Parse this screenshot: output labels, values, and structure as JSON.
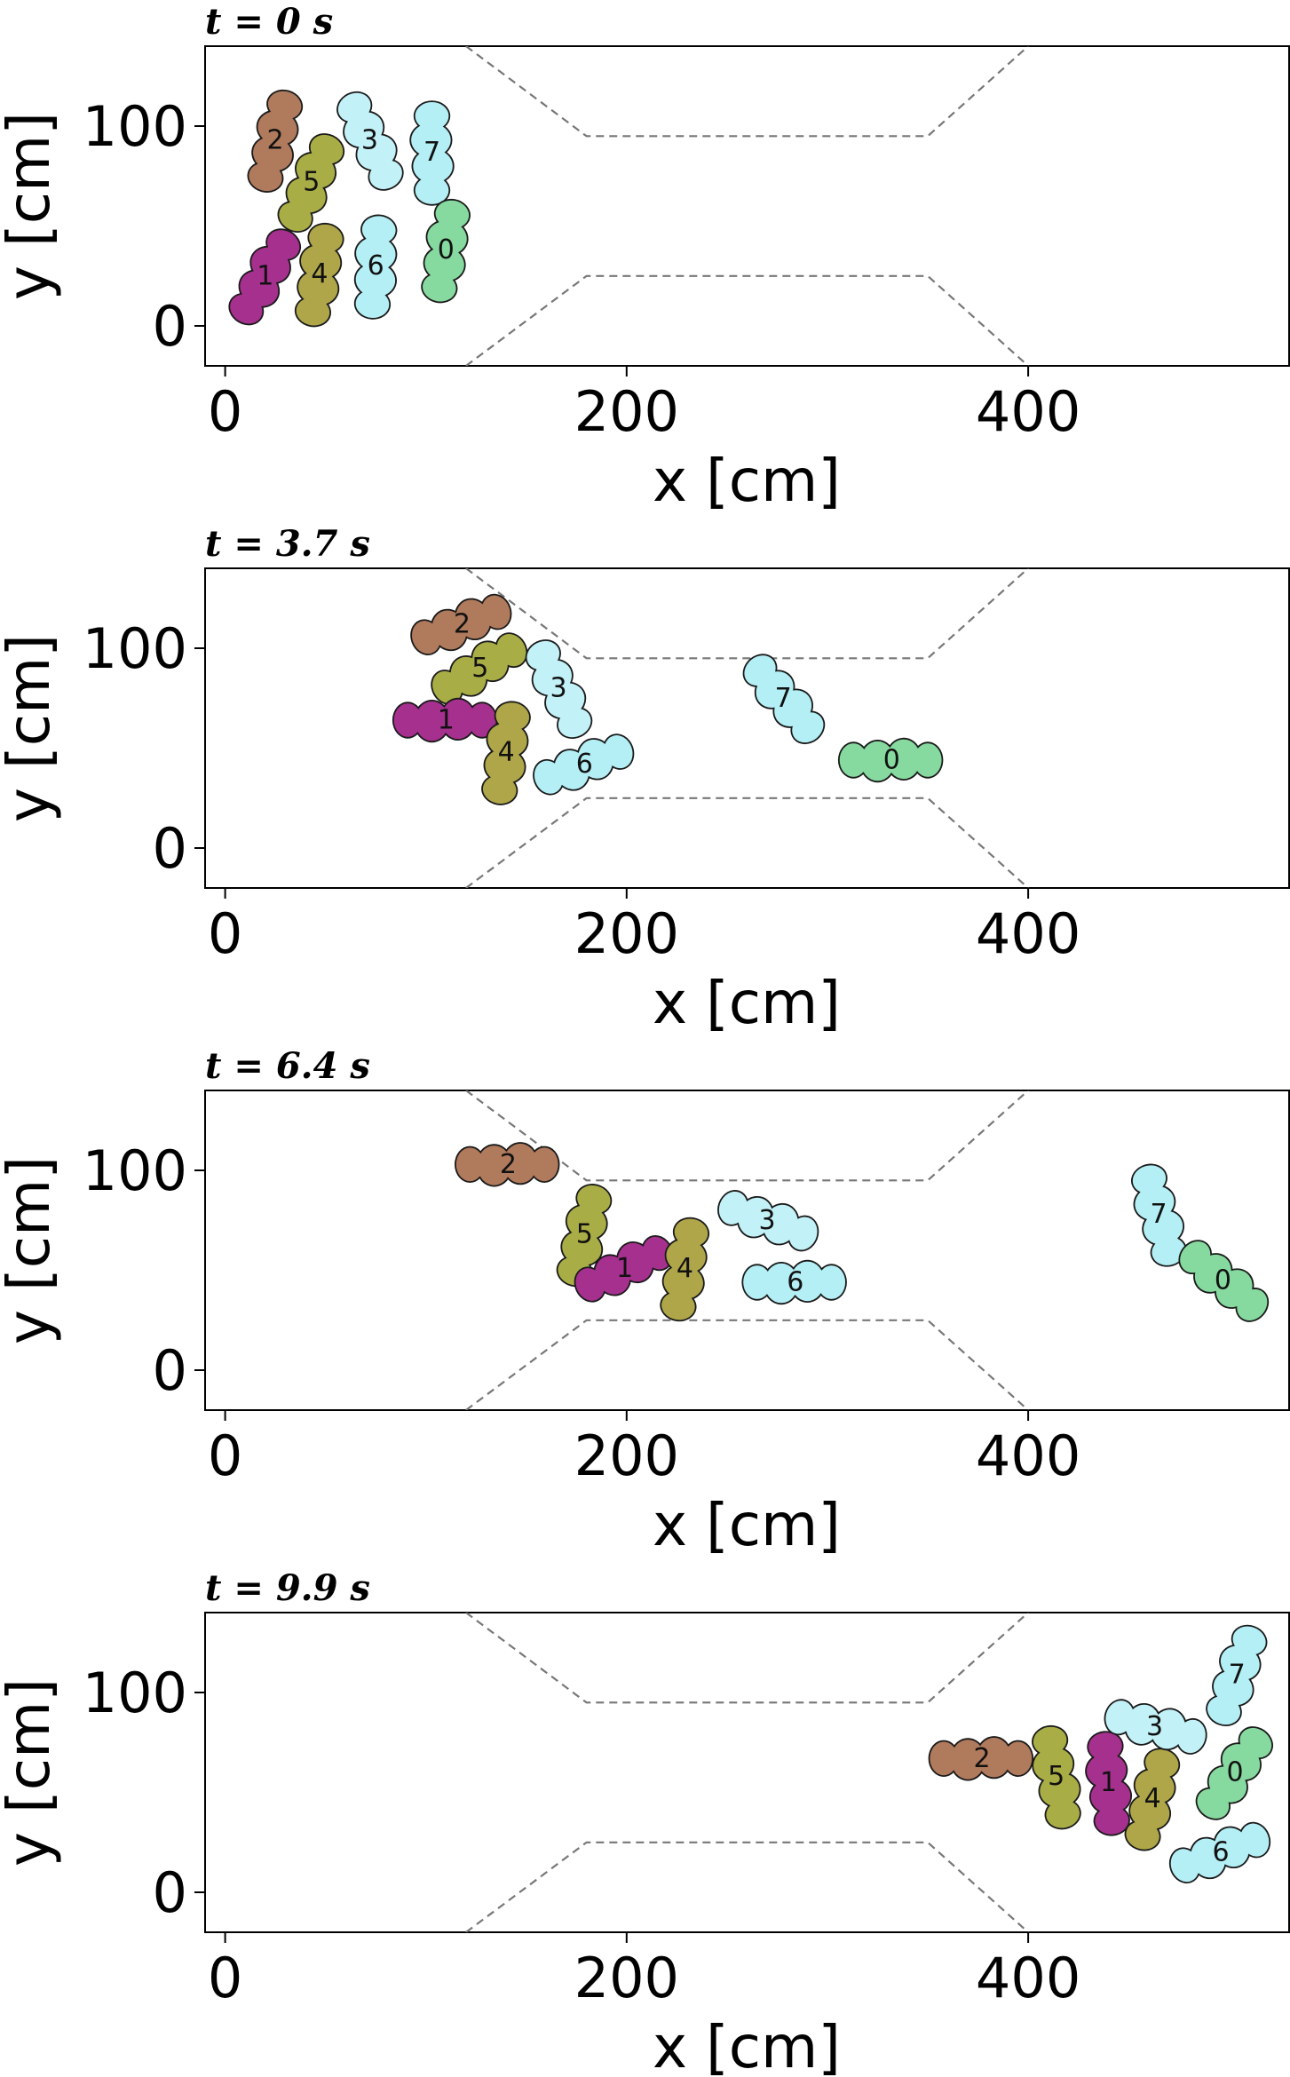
{
  "chart_data": [
    {
      "type": "scatter",
      "title": "t = 0 s",
      "xlabel": "x [cm]",
      "ylabel": "y [cm]",
      "xlim": [
        -10,
        530
      ],
      "ylim": [
        -20,
        140
      ],
      "xticks": [
        0,
        200,
        400
      ],
      "yticks": [
        0,
        100
      ],
      "agents": [
        {
          "id": "2",
          "x": 25,
          "y": 93,
          "angle": 75,
          "color": "#b07a5c"
        },
        {
          "id": "5",
          "x": 43,
          "y": 72,
          "angle": 65,
          "color": "#a9ad45"
        },
        {
          "id": "3",
          "x": 72,
          "y": 93,
          "angle": 115,
          "color": "#c2f1f7"
        },
        {
          "id": "7",
          "x": 103,
          "y": 87,
          "angle": 90,
          "color": "#b3eff5"
        },
        {
          "id": "1",
          "x": 20,
          "y": 25,
          "angle": 60,
          "color": "#a6308e"
        },
        {
          "id": "4",
          "x": 47,
          "y": 26,
          "angle": 80,
          "color": "#aea648"
        },
        {
          "id": "6",
          "x": 75,
          "y": 30,
          "angle": 85,
          "color": "#b3eff5"
        },
        {
          "id": "0",
          "x": 110,
          "y": 38,
          "angle": 80,
          "color": "#86d99f"
        }
      ]
    },
    {
      "type": "scatter",
      "title": "t = 3.7 s",
      "xlabel": "x [cm]",
      "ylabel": "y [cm]",
      "xlim": [
        -10,
        530
      ],
      "ylim": [
        -20,
        140
      ],
      "xticks": [
        0,
        200,
        400
      ],
      "yticks": [
        0,
        100
      ],
      "agents": [
        {
          "id": "2",
          "x": 118,
          "y": 112,
          "angle": 20,
          "color": "#b07a5c"
        },
        {
          "id": "5",
          "x": 127,
          "y": 90,
          "angle": 30,
          "color": "#a9ad45"
        },
        {
          "id": "3",
          "x": 166,
          "y": 80,
          "angle": 115,
          "color": "#c2f1f7"
        },
        {
          "id": "1",
          "x": 110,
          "y": 64,
          "angle": 0,
          "color": "#a6308e"
        },
        {
          "id": "4",
          "x": 140,
          "y": 48,
          "angle": 80,
          "color": "#aea648"
        },
        {
          "id": "6",
          "x": 179,
          "y": 42,
          "angle": 20,
          "color": "#b3eff5"
        },
        {
          "id": "7",
          "x": 278,
          "y": 75,
          "angle": 130,
          "color": "#b3eff5"
        },
        {
          "id": "0",
          "x": 332,
          "y": 44,
          "angle": 0,
          "color": "#86d99f"
        }
      ]
    },
    {
      "type": "scatter",
      "title": "t = 6.4 s",
      "xlabel": "x [cm]",
      "ylabel": "y [cm]",
      "xlim": [
        -10,
        530
      ],
      "ylim": [
        -20,
        140
      ],
      "xticks": [
        0,
        200,
        400
      ],
      "yticks": [
        0,
        100
      ],
      "agents": [
        {
          "id": "2",
          "x": 141,
          "y": 103,
          "angle": 0,
          "color": "#b07a5c"
        },
        {
          "id": "5",
          "x": 179,
          "y": 68,
          "angle": 75,
          "color": "#a9ad45"
        },
        {
          "id": "1",
          "x": 199,
          "y": 51,
          "angle": 25,
          "color": "#a6308e"
        },
        {
          "id": "4",
          "x": 229,
          "y": 51,
          "angle": 80,
          "color": "#aea648"
        },
        {
          "id": "3",
          "x": 270,
          "y": 75,
          "angle": 160,
          "color": "#c2f1f7"
        },
        {
          "id": "6",
          "x": 284,
          "y": 44,
          "angle": 0,
          "color": "#b3eff5"
        },
        {
          "id": "7",
          "x": 465,
          "y": 78,
          "angle": 105,
          "color": "#b3eff5"
        },
        {
          "id": "0",
          "x": 497,
          "y": 45,
          "angle": 140,
          "color": "#86d99f"
        }
      ]
    },
    {
      "type": "scatter",
      "title": "t = 9.9 s",
      "xlabel": "x [cm]",
      "ylabel": "y [cm]",
      "xlim": [
        -10,
        530
      ],
      "ylim": [
        -20,
        140
      ],
      "xticks": [
        0,
        200,
        400
      ],
      "yticks": [
        0,
        100
      ],
      "agents": [
        {
          "id": "2",
          "x": 377,
          "y": 67,
          "angle": 0,
          "color": "#b07a5c"
        },
        {
          "id": "5",
          "x": 414,
          "y": 58,
          "angle": 100,
          "color": "#a9ad45"
        },
        {
          "id": "1",
          "x": 440,
          "y": 55,
          "angle": 95,
          "color": "#a6308e"
        },
        {
          "id": "4",
          "x": 462,
          "y": 47,
          "angle": 75,
          "color": "#aea648"
        },
        {
          "id": "3",
          "x": 463,
          "y": 83,
          "angle": 165,
          "color": "#c2f1f7"
        },
        {
          "id": "7",
          "x": 504,
          "y": 109,
          "angle": 70,
          "color": "#b3eff5"
        },
        {
          "id": "0",
          "x": 503,
          "y": 60,
          "angle": 55,
          "color": "#86d99f"
        },
        {
          "id": "6",
          "x": 496,
          "y": 20,
          "angle": 20,
          "color": "#b3eff5"
        }
      ]
    }
  ]
}
